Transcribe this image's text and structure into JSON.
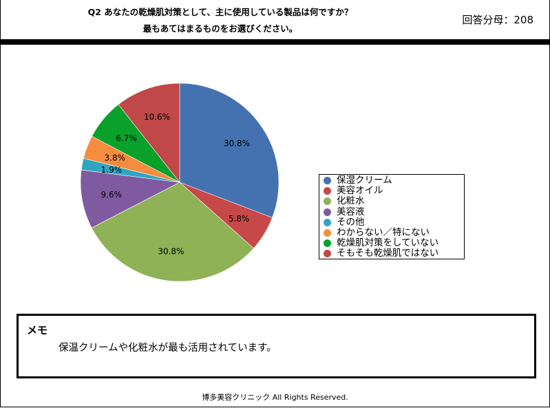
{
  "header": {
    "question_line1": "Q2 あなたの乾燥肌対策として、主に使用している製品は何ですか？",
    "question_line2": "最もあてはまるものをお選びください。",
    "respondents": "回答分母：208"
  },
  "memo": {
    "title": "メモ",
    "text": "保温クリームや化粧水が最も活用されています。"
  },
  "footer": {
    "copyright": "博多美容クリニック All Rights Reserved."
  },
  "chart_data": {
    "type": "pie",
    "start_angle_deg": 0,
    "direction": "clockwise",
    "legend_position": "right",
    "slices": [
      {
        "label": "保湿クリーム",
        "value": 30.8,
        "display": "30.8%",
        "color": "#4472B0"
      },
      {
        "label": "美容オイル",
        "value": 5.8,
        "display": "5.8%",
        "color": "#C64848"
      },
      {
        "label": "化粧水",
        "value": 30.8,
        "display": "30.8%",
        "color": "#8FB256"
      },
      {
        "label": "美容液",
        "value": 9.6,
        "display": "9.6%",
        "color": "#7F5AA0"
      },
      {
        "label": "その他",
        "value": 1.9,
        "display": "1.9%",
        "color": "#30A5C2"
      },
      {
        "label": "わからない／特にない",
        "value": 3.8,
        "display": "3.8%",
        "color": "#F58C3E"
      },
      {
        "label": "乾燥肌対策をしていない",
        "value": 6.7,
        "display": "6.7%",
        "color": "#0AA12B"
      },
      {
        "label": "そもそも乾燥肌ではない",
        "value": 10.6,
        "display": "10.6%",
        "color": "#C04848"
      }
    ]
  }
}
